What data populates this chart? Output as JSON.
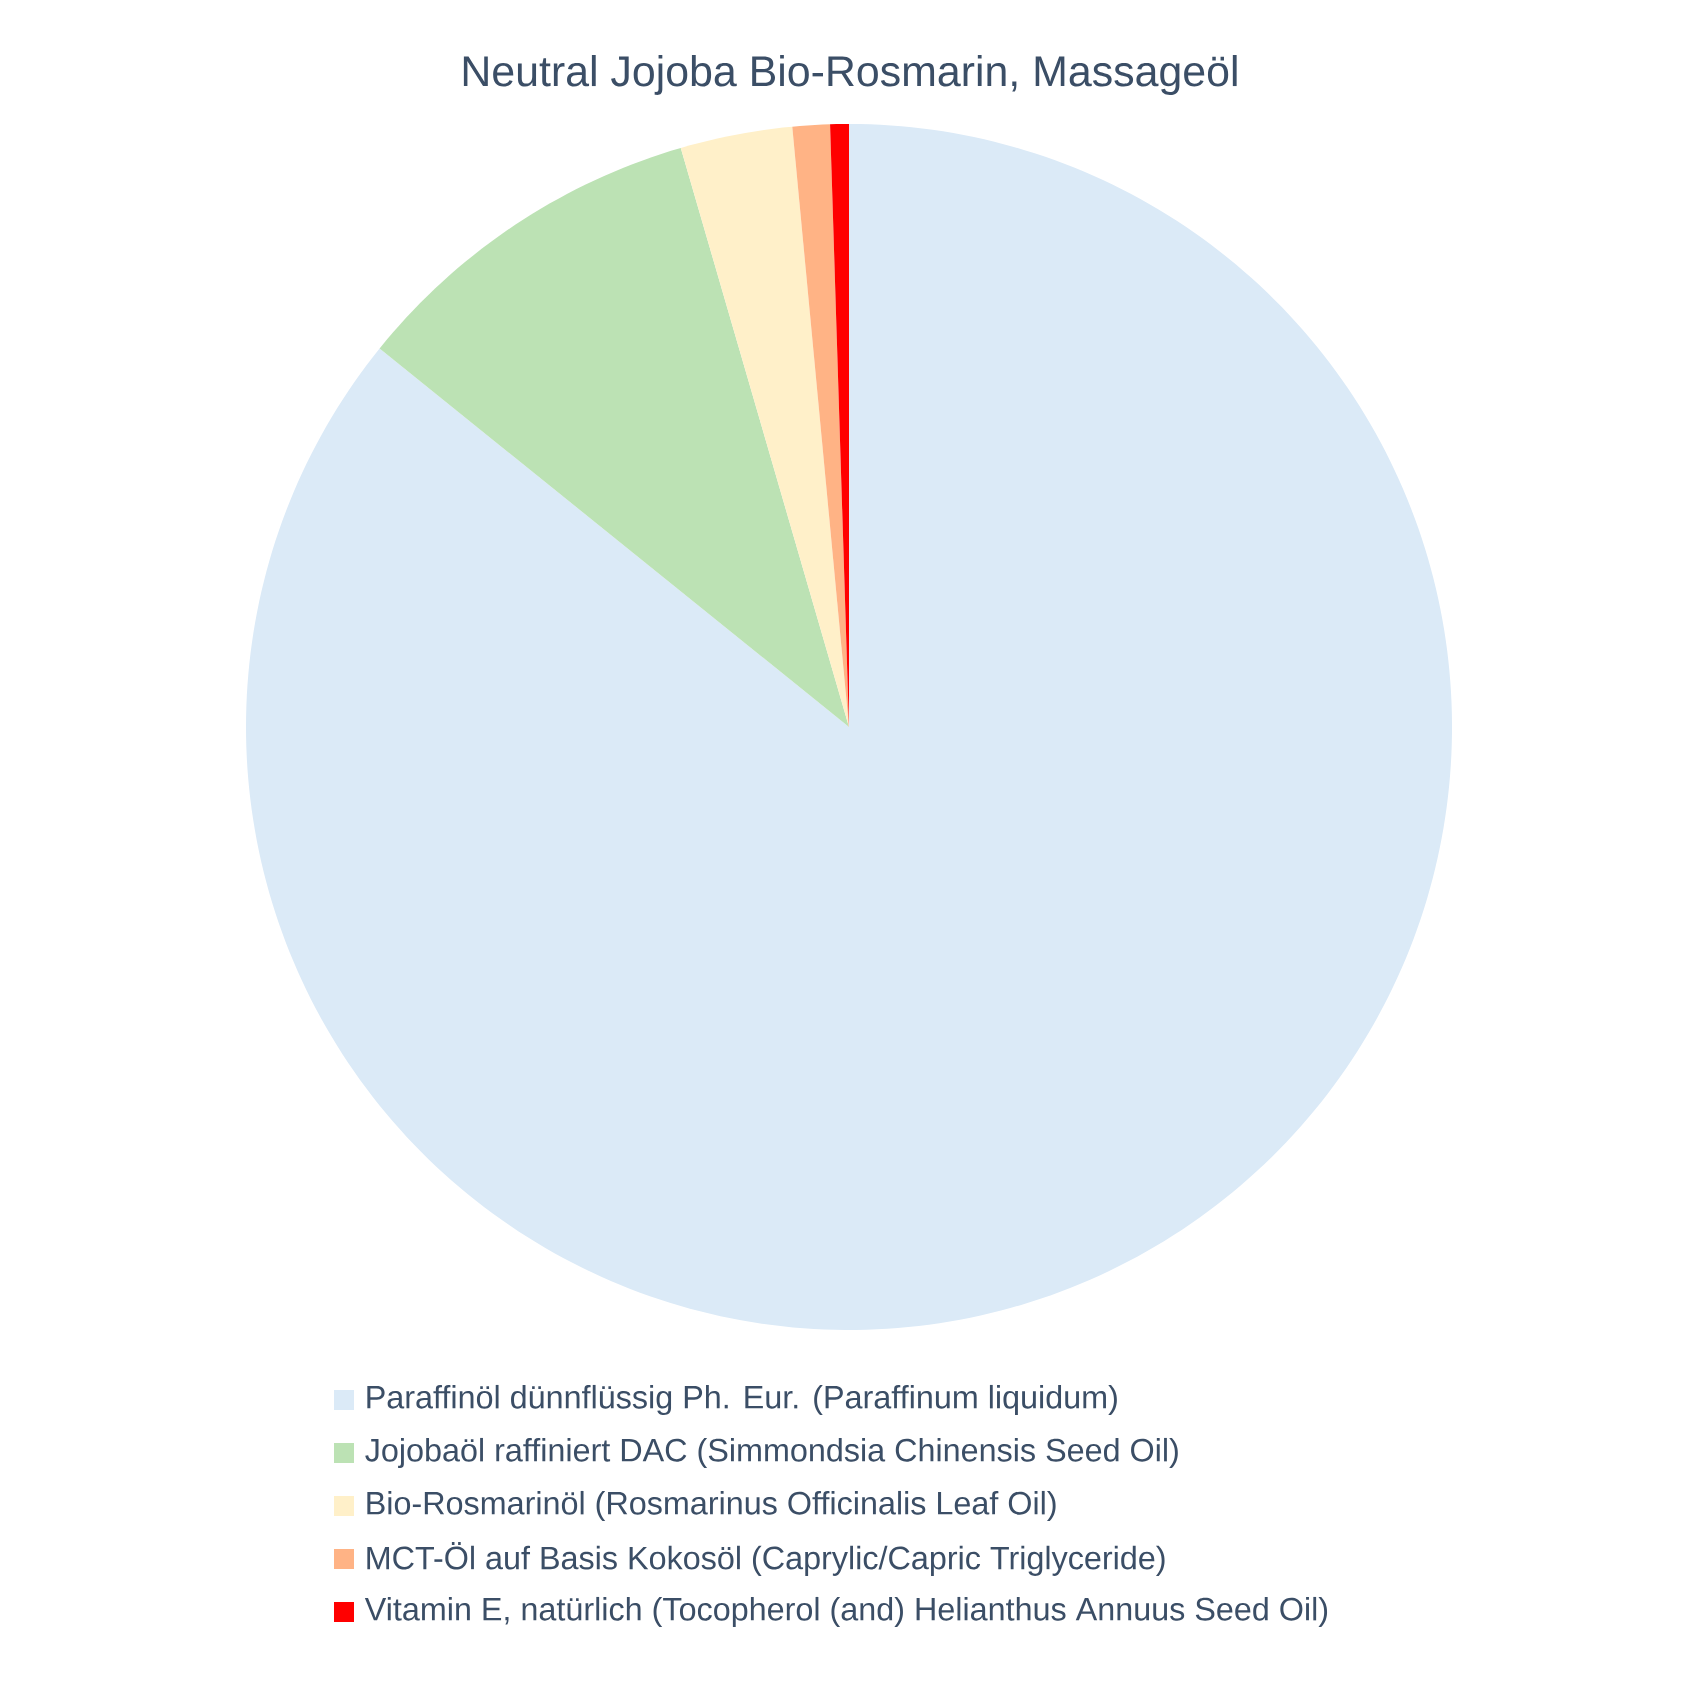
{
  "chart_data": {
    "type": "pie",
    "title": "Neutral Jojoba Bio-Rosmarin, Massageöl",
    "categories": [
      "Paraffinöl dünnflüssig Ph. Eur. (Paraffinum liquidum)",
      "Jojobaöl raffiniert DAC (Simmondsia Chinensis Seed Oil)",
      "Bio-Rosmarinöl (Rosmarinus Officinalis Leaf Oil)",
      "MCT-Öl auf Basis Kokosöl (Caprylic/Capric Triglyceride)",
      "Vitamin E, natürlich (Tocopherol (and) Helianthus Annuus Seed Oil)"
    ],
    "values": [
      85.8,
      9.7,
      3.0,
      1.0,
      0.5
    ],
    "colors": [
      "#dbeaf7",
      "#bce2b4",
      "#fff0c9",
      "#ffb385",
      "#ff0000"
    ],
    "legend": "bottom"
  }
}
